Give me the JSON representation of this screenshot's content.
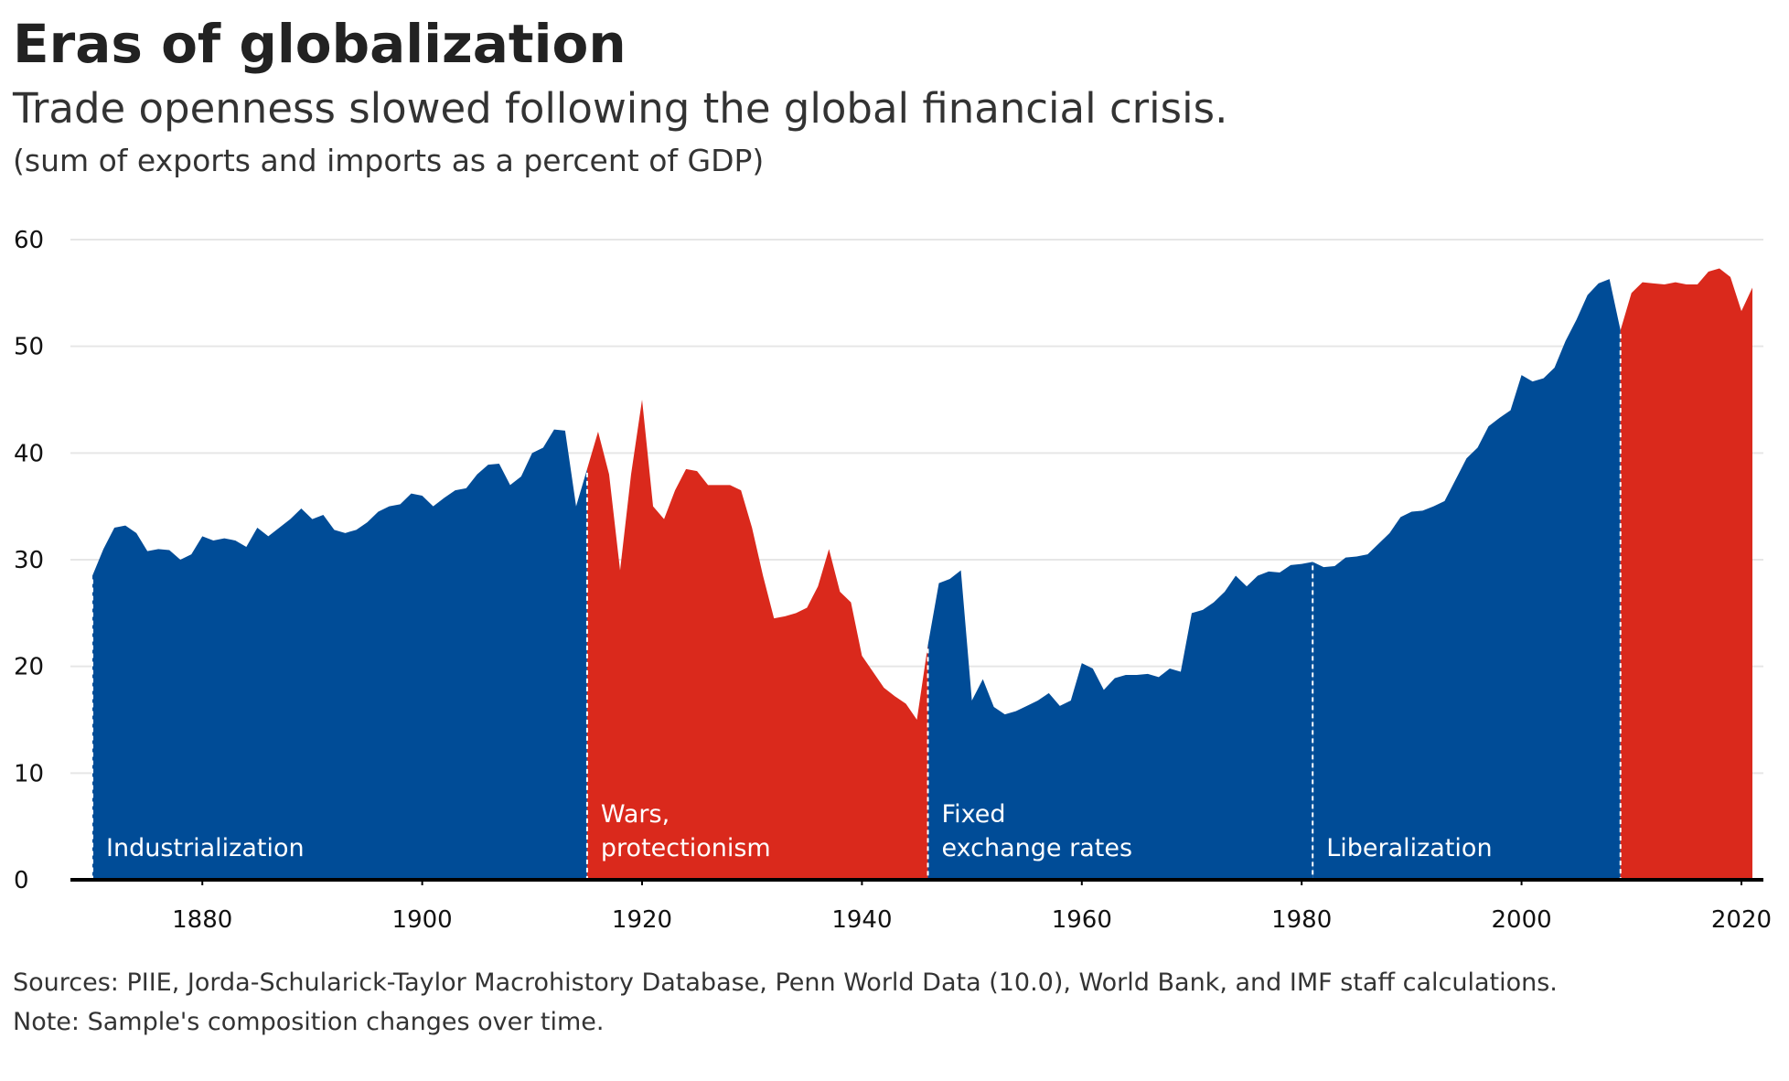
{
  "chart_data": {
    "type": "area",
    "title": "Eras of globalization",
    "subtitle": "Trade openness slowed following the global financial crisis.",
    "unit_note": "(sum of exports and imports as a percent of GDP)",
    "notes": [
      "Sources: PIIE, Jorda-Schularick-Taylor Macrohistory Database, Penn World Data (10.0), World Bank, and IMF staff calculations.",
      "Note: Sample's composition changes over time."
    ],
    "x": [
      1870,
      1871,
      1872,
      1873,
      1874,
      1875,
      1876,
      1877,
      1878,
      1879,
      1880,
      1881,
      1882,
      1883,
      1884,
      1885,
      1886,
      1887,
      1888,
      1889,
      1890,
      1891,
      1892,
      1893,
      1894,
      1895,
      1896,
      1897,
      1898,
      1899,
      1900,
      1901,
      1902,
      1903,
      1904,
      1905,
      1906,
      1907,
      1908,
      1909,
      1910,
      1911,
      1912,
      1913,
      1914,
      1915,
      1916,
      1917,
      1918,
      1919,
      1920,
      1921,
      1922,
      1923,
      1924,
      1925,
      1926,
      1927,
      1928,
      1929,
      1930,
      1931,
      1932,
      1933,
      1934,
      1935,
      1936,
      1937,
      1938,
      1939,
      1940,
      1941,
      1942,
      1943,
      1944,
      1945,
      1946,
      1947,
      1948,
      1949,
      1950,
      1951,
      1952,
      1953,
      1954,
      1955,
      1956,
      1957,
      1958,
      1959,
      1960,
      1961,
      1962,
      1963,
      1964,
      1965,
      1966,
      1967,
      1968,
      1969,
      1970,
      1971,
      1972,
      1973,
      1974,
      1975,
      1976,
      1977,
      1978,
      1979,
      1980,
      1981,
      1982,
      1983,
      1984,
      1985,
      1986,
      1987,
      1988,
      1989,
      1990,
      1991,
      1992,
      1993,
      1994,
      1995,
      1996,
      1997,
      1998,
      1999,
      2000,
      2001,
      2002,
      2003,
      2004,
      2005,
      2006,
      2007,
      2008,
      2009,
      2010,
      2011,
      2012,
      2013,
      2014,
      2015,
      2016,
      2017,
      2018,
      2019,
      2020,
      2021
    ],
    "values": [
      28.5,
      31,
      33,
      33.2,
      32.5,
      30.8,
      31,
      30.9,
      30,
      30.5,
      32.2,
      31.8,
      32,
      31.8,
      31.2,
      33,
      32.2,
      33,
      33.8,
      34.8,
      33.8,
      34.2,
      32.8,
      32.5,
      32.8,
      33.5,
      34.5,
      35,
      35.2,
      36.2,
      36,
      35,
      35.8,
      36.5,
      36.7,
      38,
      38.9,
      39,
      37,
      37.8,
      40,
      40.5,
      42.2,
      42.1,
      35,
      38.5,
      42,
      38,
      29,
      38,
      45,
      35,
      33.8,
      36.5,
      38.5,
      38.3,
      37,
      37,
      37,
      36.5,
      33,
      28.5,
      24.5,
      24.7,
      25,
      25.5,
      27.5,
      31,
      27,
      26,
      21,
      19.5,
      18,
      17.2,
      16.5,
      15,
      22,
      27.8,
      28.2,
      29,
      16.8,
      18.8,
      16.2,
      15.5,
      15.8,
      16.3,
      16.8,
      17.5,
      16.3,
      16.8,
      20.3,
      19.8,
      17.8,
      18.9,
      19.2,
      19.2,
      19.3,
      19,
      19.8,
      19.5,
      25,
      25.3,
      26,
      27,
      28.5,
      27.5,
      28.5,
      28.9,
      28.8,
      29.5,
      29.6,
      29.8,
      29.3,
      29.4,
      30.2,
      30.3,
      30.5,
      31.5,
      32.5,
      34,
      34.5,
      34.6,
      35,
      35.5,
      37.5,
      39.5,
      40.5,
      42.5,
      43.3,
      44,
      47.3,
      46.7,
      47,
      48,
      50.5,
      52.5,
      54.8,
      55.9,
      56.3,
      51.5,
      55,
      56,
      55.9,
      55.8,
      56,
      55.8,
      55.8,
      57,
      57.3,
      56.5,
      53.3,
      55.5
    ],
    "eras": [
      {
        "label": [
          "Industrialization"
        ],
        "start": 1870,
        "end": 1915,
        "color": "#004c97"
      },
      {
        "label": [
          "Wars,",
          "protectionism"
        ],
        "start": 1915,
        "end": 1946,
        "color": "#da291c"
      },
      {
        "label": [
          "Fixed",
          "exchange rates"
        ],
        "start": 1946,
        "end": 1981,
        "color": "#004c97"
      },
      {
        "label": [
          "Liberalization"
        ],
        "start": 1981,
        "end": 2009,
        "color": "#004c97"
      },
      {
        "label": null,
        "start": 2009,
        "end": 2021,
        "color": "#da291c"
      }
    ],
    "xlim": [
      1868,
      2022
    ],
    "xticks": [
      1880,
      1900,
      1920,
      1940,
      1960,
      1980,
      2000,
      2020
    ],
    "ylim": [
      0,
      60
    ],
    "yticks": [
      0,
      10,
      20,
      30,
      40,
      50,
      60
    ],
    "grid": true
  }
}
